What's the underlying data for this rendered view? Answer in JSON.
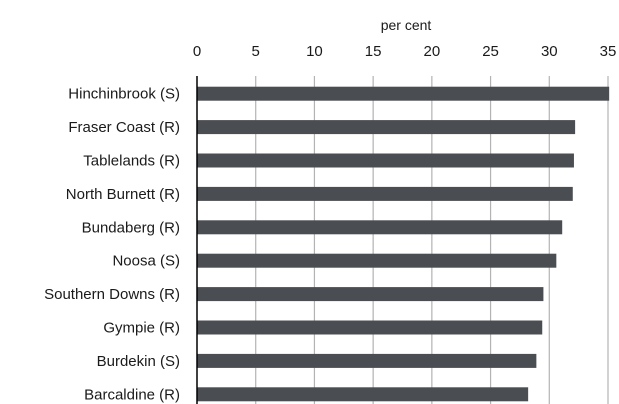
{
  "chart_data": {
    "type": "bar",
    "orientation": "horizontal",
    "xlabel": "per cent",
    "x_axis_position": "top",
    "xlim": [
      0,
      35
    ],
    "x_ticks": [
      0,
      5,
      10,
      15,
      20,
      25,
      30,
      35
    ],
    "x_tick_labels": [
      "0",
      "5",
      "10",
      "15",
      "20",
      "25",
      "30",
      "35"
    ],
    "grid": "vertical",
    "categories": [
      "Hinchinbrook (S)",
      "Fraser Coast (R)",
      "Tablelands (R)",
      "North Burnett (R)",
      "Bundaberg (R)",
      "Noosa (S)",
      "Southern Downs (R)",
      "Gympie (R)",
      "Burdekin (S)",
      "Barcaldine (R)"
    ],
    "values": [
      35.1,
      32.2,
      32.1,
      32.0,
      31.1,
      30.6,
      29.5,
      29.4,
      28.9,
      28.2
    ],
    "colors": {
      "bar": "#4a4d52",
      "grid": "#b3b3b3",
      "axis": "#000000"
    }
  }
}
